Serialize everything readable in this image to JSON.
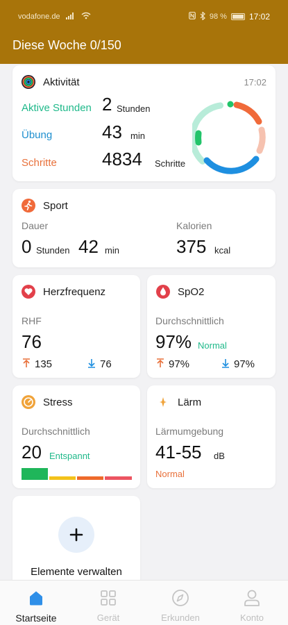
{
  "status_bar": {
    "carrier": "vodafone.de",
    "battery": "98 %",
    "time": "17:02"
  },
  "header": {
    "title": "Diese Woche 0/150"
  },
  "activity": {
    "title": "Aktivität",
    "time": "17:02",
    "rows": [
      {
        "label": "Aktive Stunden",
        "value": "2",
        "unit": "Stunden",
        "color": "#1fb98a"
      },
      {
        "label": "Übung",
        "value": "43",
        "unit": "min",
        "color": "#1e8fcf"
      },
      {
        "label": "Schritte",
        "value": "4834",
        "unit": "Schritte",
        "color": "#e8703a"
      }
    ],
    "ring_colors": {
      "orange": "#f06a3a",
      "peach": "#f6c2b0",
      "blue": "#1e8fe0",
      "mint": "#b8ecd9",
      "green": "#22c46a"
    }
  },
  "sport": {
    "title": "Sport",
    "duration_label": "Dauer",
    "hours_value": "0",
    "hours_unit": "Stunden",
    "minutes_value": "42",
    "minutes_unit": "min",
    "calories_label": "Kalorien",
    "calories_value": "375",
    "calories_unit": "kcal"
  },
  "heart": {
    "title": "Herzfrequenz",
    "label": "RHF",
    "value": "76",
    "max": "135",
    "min": "76"
  },
  "spo2": {
    "title": "SpO2",
    "label": "Durchschnittlich",
    "value": "97%",
    "status": "Normal",
    "max": "97%",
    "min": "97%"
  },
  "stress": {
    "title": "Stress",
    "label": "Durchschnittlich",
    "value": "20",
    "status": "Entspannt",
    "bar_colors": [
      "#1fb65a",
      "#f3c21b",
      "#ee6a2b",
      "#ec5561"
    ]
  },
  "noise": {
    "title": "Lärm",
    "label": "Lärmumgebung",
    "value": "41-55",
    "unit": "dB",
    "status": "Normal"
  },
  "manage": {
    "label": "Elemente verwalten"
  },
  "nav": [
    {
      "label": "Startseite",
      "active": true
    },
    {
      "label": "Gerät",
      "active": false
    },
    {
      "label": "Erkunden",
      "active": false
    },
    {
      "label": "Konto",
      "active": false
    }
  ]
}
